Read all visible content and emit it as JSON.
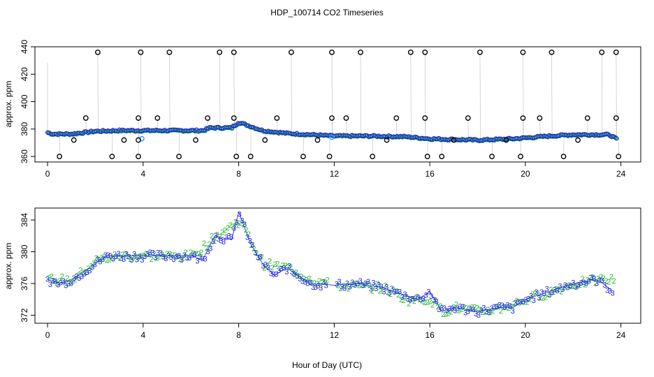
{
  "title": "HDP_100714  CO2 Timeseries",
  "xlabel": "Hour of Day (UTC)",
  "colors": {
    "series1": "#22bb22",
    "series2": "#1a1aee",
    "series3": "#3399ff",
    "flagged": "#000000",
    "drop": "#999999"
  },
  "chart_data": [
    {
      "type": "scatter",
      "name": "top-panel",
      "ylabel": "approx. ppm",
      "xlim": [
        0,
        24
      ],
      "ylim": [
        356,
        440
      ],
      "xticks": [
        "0",
        "4",
        "8",
        "12",
        "16",
        "20",
        "24"
      ],
      "yticks": [
        "360",
        "380",
        "400",
        "420",
        "440"
      ],
      "xtick_values": [
        0,
        4,
        8,
        12,
        16,
        20,
        24
      ],
      "ytick_values": [
        360,
        380,
        400,
        420,
        440
      ],
      "series": [
        {
          "name": "blue",
          "profile": [
            [
              0,
              377.5
            ],
            [
              0.2,
              376.5
            ],
            [
              1,
              376.5
            ],
            [
              2,
              378.5
            ],
            [
              3,
              379
            ],
            [
              4,
              379
            ],
            [
              5,
              379
            ],
            [
              6.5,
              379
            ],
            [
              6.8,
              381
            ],
            [
              7.7,
              381
            ],
            [
              8,
              385
            ],
            [
              8.5,
              382
            ],
            [
              9,
              379
            ],
            [
              10,
              377
            ],
            [
              11,
              376
            ],
            [
              12,
              375
            ],
            [
              13.5,
              375
            ],
            [
              15,
              374.5
            ],
            [
              16,
              373
            ],
            [
              17,
              372.5
            ],
            [
              18,
              372
            ],
            [
              19.5,
              373
            ],
            [
              21,
              375
            ],
            [
              22,
              376
            ],
            [
              23.5,
              376
            ],
            [
              23.8,
              373
            ]
          ]
        },
        {
          "name": "flagged-high",
          "points": [
            [
              2.1,
              436
            ],
            [
              3.9,
              436
            ],
            [
              5.1,
              436
            ],
            [
              7.2,
              436
            ],
            [
              7.8,
              436
            ],
            [
              10.2,
              436
            ],
            [
              11.9,
              436
            ],
            [
              13.1,
              436
            ],
            [
              15.2,
              436
            ],
            [
              15.8,
              436
            ],
            [
              18.1,
              436
            ],
            [
              19.9,
              436
            ],
            [
              21.1,
              436
            ],
            [
              23.2,
              436
            ],
            [
              23.8,
              436
            ]
          ]
        },
        {
          "name": "flagged-mid",
          "points": [
            [
              1.6,
              388
            ],
            [
              3.8,
              388
            ],
            [
              4.6,
              388
            ],
            [
              6.7,
              388
            ],
            [
              7.8,
              388
            ],
            [
              9.6,
              388
            ],
            [
              11.9,
              388
            ],
            [
              12.5,
              388
            ],
            [
              14.6,
              388
            ],
            [
              15.8,
              388
            ],
            [
              17.6,
              388
            ],
            [
              19.9,
              388
            ],
            [
              20.6,
              388
            ],
            [
              22.6,
              388
            ],
            [
              23.8,
              388
            ]
          ]
        },
        {
          "name": "flagged-low",
          "points": [
            [
              0.5,
              360
            ],
            [
              1.1,
              372
            ],
            [
              2.7,
              360
            ],
            [
              3.2,
              372
            ],
            [
              3.8,
              360
            ],
            [
              3.8,
              372
            ],
            [
              5.5,
              360
            ],
            [
              6.2,
              372
            ],
            [
              7.9,
              360
            ],
            [
              8.5,
              360
            ],
            [
              9.1,
              372
            ],
            [
              10.7,
              360
            ],
            [
              11.3,
              372
            ],
            [
              11.8,
              360
            ],
            [
              13.6,
              360
            ],
            [
              14.2,
              372
            ],
            [
              15.9,
              360
            ],
            [
              16.5,
              360
            ],
            [
              17.0,
              372
            ],
            [
              18.6,
              360
            ],
            [
              19.2,
              372
            ],
            [
              19.8,
              360
            ],
            [
              21.6,
              360
            ],
            [
              22.2,
              372
            ],
            [
              23.9,
              360
            ]
          ]
        }
      ]
    },
    {
      "type": "scatter",
      "name": "bottom-panel",
      "ylabel": "approx. ppm",
      "xlim": [
        0,
        24
      ],
      "ylim": [
        371,
        385.5
      ],
      "xticks": [
        "0",
        "4",
        "8",
        "12",
        "16",
        "20",
        "24"
      ],
      "yticks": [
        "372",
        "376",
        "380",
        "384"
      ],
      "xtick_values": [
        0,
        4,
        8,
        12,
        16,
        20,
        24
      ],
      "ytick_values": [
        372,
        376,
        380,
        384
      ],
      "series": [
        {
          "name": "3",
          "marker": "3",
          "profile": [
            [
              0,
              376.5
            ],
            [
              0.5,
              376
            ],
            [
              1,
              376.5
            ],
            [
              1.5,
              377.5
            ],
            [
              2,
              378.5
            ],
            [
              2.5,
              379.5
            ],
            [
              3.5,
              379.5
            ],
            [
              4,
              379.5
            ],
            [
              5,
              379.5
            ],
            [
              6,
              379.5
            ],
            [
              6.5,
              379
            ],
            [
              7,
              382
            ],
            [
              7.7,
              381.5
            ],
            [
              8,
              385
            ],
            [
              8.5,
              381
            ],
            [
              9,
              378.5
            ],
            [
              9.5,
              377
            ],
            [
              10,
              378
            ],
            [
              10.5,
              377
            ],
            [
              11,
              376
            ],
            [
              12,
              375.8
            ],
            [
              13,
              376
            ],
            [
              14,
              375.5
            ],
            [
              15,
              374.5
            ],
            [
              15.5,
              374
            ],
            [
              16,
              375
            ],
            [
              16.5,
              372.5
            ],
            [
              17,
              373
            ],
            [
              18,
              372.5
            ],
            [
              19,
              373
            ],
            [
              19.5,
              373
            ],
            [
              20,
              374
            ],
            [
              21,
              375
            ],
            [
              22,
              376
            ],
            [
              23,
              376.5
            ],
            [
              23.7,
              375
            ]
          ]
        },
        {
          "name": "2",
          "marker": "2",
          "profile": [
            [
              0,
              376.5
            ],
            [
              1,
              376.5
            ],
            [
              2,
              379
            ],
            [
              3,
              379.5
            ],
            [
              4,
              379.5
            ],
            [
              6,
              379.5
            ],
            [
              7,
              382
            ],
            [
              8,
              384
            ],
            [
              8.5,
              381
            ],
            [
              9,
              378.5
            ],
            [
              10,
              378
            ],
            [
              11,
              376.5
            ],
            [
              12,
              375.8
            ],
            [
              14,
              375.5
            ],
            [
              15,
              374
            ],
            [
              16,
              374
            ],
            [
              16.5,
              372.5
            ],
            [
              17,
              373
            ],
            [
              18,
              372.5
            ],
            [
              19,
              373
            ],
            [
              20,
              374
            ],
            [
              21,
              375
            ],
            [
              22,
              376
            ],
            [
              23,
              376.5
            ],
            [
              23.7,
              376.5
            ]
          ]
        }
      ]
    }
  ]
}
